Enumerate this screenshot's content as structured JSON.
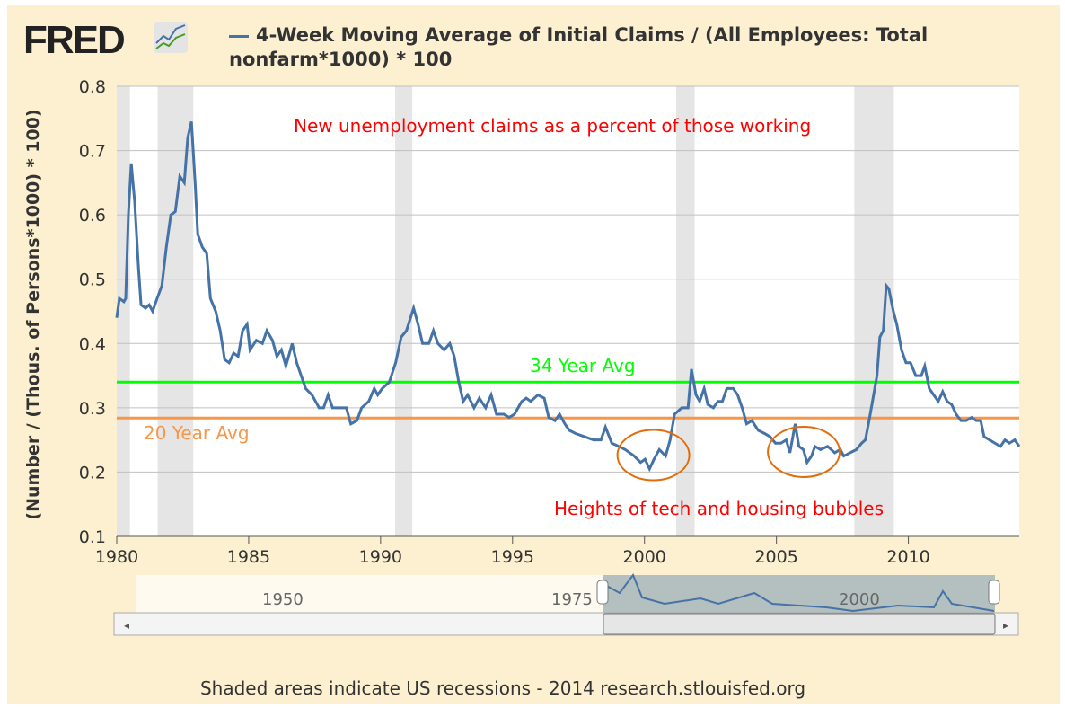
{
  "header": {
    "logo": "FRED",
    "title": "4-Week Moving Average of Initial Claims / (All Employees: Total nonfarm*1000) * 100"
  },
  "footer": "Shaded areas indicate US recessions - 2014 research.stlouisfed.org",
  "navigator": {
    "labels": [
      "1950",
      "1975",
      "2000"
    ]
  },
  "chart_data": {
    "type": "line",
    "title": "4-Week Moving Average of Initial Claims / (All Employees: Total nonfarm*1000) * 100",
    "xlabel": "",
    "ylabel": "(Number / (Thous. of Persons*1000) * 100)",
    "xlim": [
      1980,
      2014.2
    ],
    "ylim": [
      0.1,
      0.8
    ],
    "xticks": [
      1980,
      1985,
      1990,
      1995,
      2000,
      2005,
      2010
    ],
    "yticks": [
      0.1,
      0.2,
      0.3,
      0.4,
      0.5,
      0.6,
      0.7,
      0.8
    ],
    "color": "#4572a7",
    "recessions": [
      [
        1980.0,
        1980.5
      ],
      [
        1981.55,
        1982.9
      ],
      [
        1990.55,
        1991.2
      ],
      [
        2001.2,
        2001.9
      ],
      [
        2007.95,
        2009.45
      ]
    ],
    "reference_lines": [
      {
        "label": "34 Year Avg",
        "value": 0.34,
        "color": "#00ff00"
      },
      {
        "label": "20 Year Avg",
        "value": 0.284,
        "color": "#f79646"
      }
    ],
    "annotations": [
      {
        "text": "New unemployment claims as a percent of those working",
        "color": "#ff0000"
      },
      {
        "text": "Heights of tech and housing bubbles",
        "color": "#ff0000"
      }
    ],
    "highlights": [
      {
        "year": 2000.2,
        "value": 0.225
      },
      {
        "year": 2005.9,
        "value": 0.23
      }
    ],
    "series": [
      {
        "name": "4-Week Moving Average of Initial Claims / (All Employees: Total nonfarm*1000) * 100",
        "x": [
          1980,
          1980.1,
          1980.27,
          1980.34,
          1980.44,
          1980.55,
          1980.68,
          1980.82,
          1980.92,
          1981.09,
          1981.23,
          1981.36,
          1981.53,
          1981.71,
          1981.88,
          1982.05,
          1982.22,
          1982.39,
          1982.56,
          1982.69,
          1982.83,
          1982.97,
          1983.07,
          1983.24,
          1983.41,
          1983.55,
          1983.75,
          1983.92,
          1984.09,
          1984.26,
          1984.43,
          1984.6,
          1984.77,
          1984.94,
          1985.05,
          1985.29,
          1985.52,
          1985.69,
          1985.9,
          1986.07,
          1986.24,
          1986.41,
          1986.65,
          1986.82,
          1986.99,
          1987.16,
          1987.4,
          1987.67,
          1987.84,
          1988.01,
          1988.18,
          1988.46,
          1988.7,
          1988.87,
          1989.1,
          1989.28,
          1989.55,
          1989.76,
          1989.89,
          1990.06,
          1990.33,
          1990.57,
          1990.78,
          1990.98,
          1991.25,
          1991.42,
          1991.59,
          1991.83,
          1992,
          1992.17,
          1992.41,
          1992.62,
          1992.79,
          1992.96,
          1993.13,
          1993.3,
          1993.54,
          1993.74,
          1993.98,
          1994.19,
          1994.39,
          1994.67,
          1994.87,
          1995.07,
          1995.35,
          1995.52,
          1995.69,
          1995.96,
          1996.2,
          1996.37,
          1996.61,
          1996.78,
          1996.98,
          1997.15,
          1997.39,
          1997.73,
          1998.07,
          1998.35,
          1998.52,
          1998.76,
          1999.03,
          1999.27,
          1999.44,
          1999.61,
          1999.85,
          2000.02,
          2000.19,
          2000.36,
          2000.56,
          2000.8,
          2000.97,
          2001.14,
          2001.41,
          2001.65,
          2001.78,
          2001.95,
          2002.09,
          2002.26,
          2002.4,
          2002.61,
          2002.78,
          2002.95,
          2003.12,
          2003.36,
          2003.53,
          2003.7,
          2003.87,
          2004.07,
          2004.31,
          2004.55,
          2004.76,
          2004.96,
          2005.17,
          2005.37,
          2005.51,
          2005.71,
          2005.85,
          2006.02,
          2006.16,
          2006.33,
          2006.46,
          2006.67,
          2006.94,
          2007.21,
          2007.42,
          2007.55,
          2007.79,
          2008.03,
          2008.23,
          2008.37,
          2008.51,
          2008.64,
          2008.81,
          2008.92,
          2009.05,
          2009.16,
          2009.26,
          2009.43,
          2009.56,
          2009.74,
          2009.91,
          2010.08,
          2010.28,
          2010.49,
          2010.62,
          2010.79,
          2010.96,
          2011.13,
          2011.3,
          2011.47,
          2011.64,
          2011.81,
          2011.99,
          2012.19,
          2012.4,
          2012.57,
          2012.74,
          2012.87,
          2013.08,
          2013.28,
          2013.49,
          2013.66,
          2013.83,
          2014.03,
          2014.2
        ],
        "values": [
          0.44,
          0.47,
          0.465,
          0.47,
          0.6,
          0.68,
          0.62,
          0.52,
          0.46,
          0.455,
          0.46,
          0.45,
          0.47,
          0.49,
          0.55,
          0.6,
          0.605,
          0.66,
          0.65,
          0.72,
          0.745,
          0.65,
          0.57,
          0.55,
          0.54,
          0.47,
          0.45,
          0.42,
          0.375,
          0.37,
          0.385,
          0.38,
          0.42,
          0.43,
          0.39,
          0.405,
          0.4,
          0.42,
          0.405,
          0.38,
          0.39,
          0.365,
          0.4,
          0.37,
          0.35,
          0.33,
          0.32,
          0.3,
          0.3,
          0.32,
          0.3,
          0.3,
          0.3,
          0.275,
          0.28,
          0.3,
          0.31,
          0.33,
          0.32,
          0.33,
          0.34,
          0.37,
          0.41,
          0.42,
          0.455,
          0.43,
          0.4,
          0.4,
          0.42,
          0.4,
          0.39,
          0.4,
          0.38,
          0.34,
          0.31,
          0.32,
          0.3,
          0.315,
          0.3,
          0.32,
          0.29,
          0.29,
          0.285,
          0.29,
          0.31,
          0.315,
          0.31,
          0.32,
          0.315,
          0.285,
          0.28,
          0.29,
          0.275,
          0.265,
          0.26,
          0.255,
          0.25,
          0.25,
          0.27,
          0.245,
          0.24,
          0.235,
          0.23,
          0.225,
          0.215,
          0.22,
          0.205,
          0.22,
          0.235,
          0.225,
          0.25,
          0.29,
          0.3,
          0.3,
          0.36,
          0.32,
          0.31,
          0.33,
          0.305,
          0.3,
          0.31,
          0.31,
          0.33,
          0.33,
          0.32,
          0.3,
          0.275,
          0.28,
          0.265,
          0.26,
          0.255,
          0.245,
          0.245,
          0.25,
          0.23,
          0.275,
          0.24,
          0.235,
          0.215,
          0.225,
          0.24,
          0.235,
          0.24,
          0.23,
          0.235,
          0.225,
          0.23,
          0.235,
          0.245,
          0.25,
          0.28,
          0.31,
          0.35,
          0.41,
          0.42,
          0.49,
          0.485,
          0.45,
          0.43,
          0.39,
          0.37,
          0.37,
          0.35,
          0.35,
          0.365,
          0.33,
          0.32,
          0.31,
          0.325,
          0.31,
          0.305,
          0.29,
          0.28,
          0.28,
          0.285,
          0.28,
          0.28,
          0.255,
          0.25,
          0.245,
          0.24,
          0.25,
          0.245,
          0.25,
          0.24
        ]
      }
    ]
  }
}
